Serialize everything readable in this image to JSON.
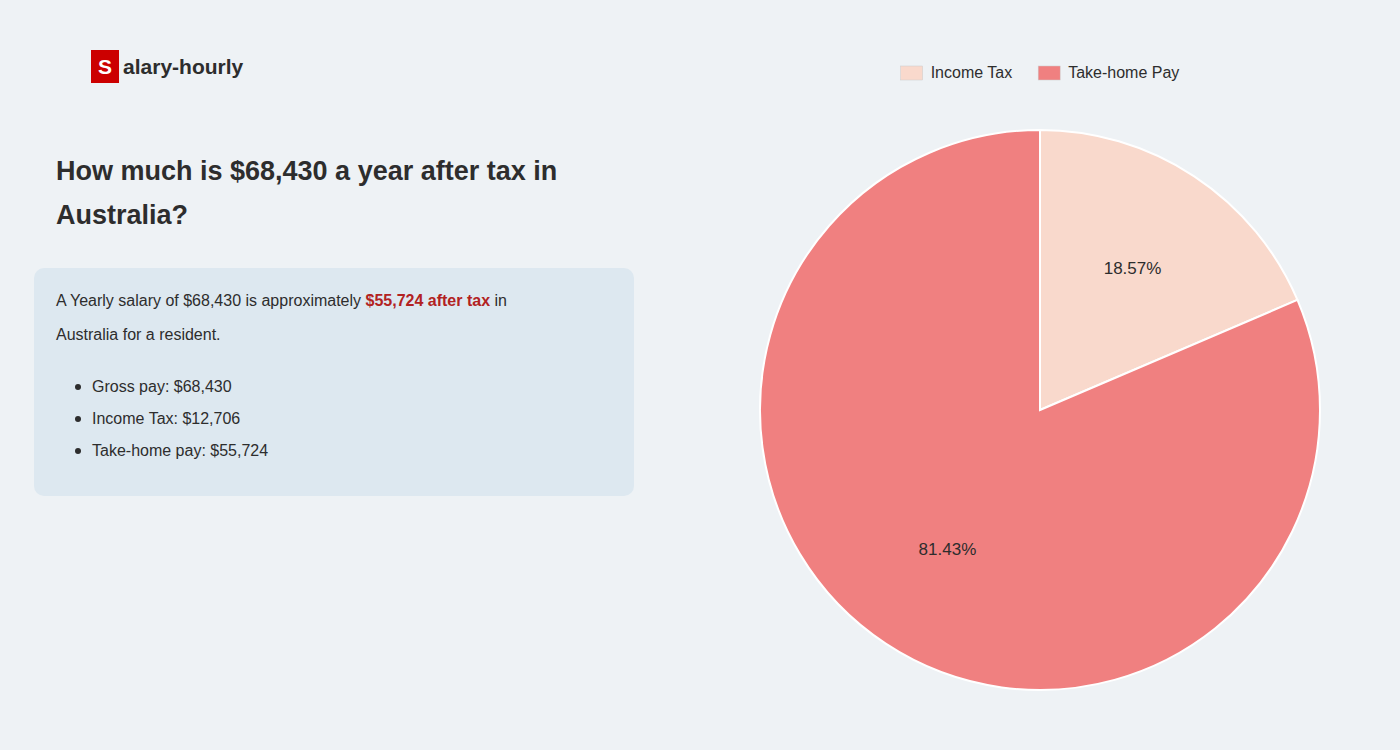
{
  "chart_data": {
    "type": "pie",
    "title": [
      "How much is $68,430 a year after tax in",
      "Australia?"
    ],
    "annotations": [
      {
        "text": "S",
        "color": "#cc0000"
      },
      {
        "text": "alary-hourly"
      },
      {
        "text": "A Yearly salary of $68,430 is approximately "
      },
      {
        "text": "$55,724 after tax",
        "color": "#b22222"
      },
      {
        "text": " in"
      },
      {
        "text": "Australia for a resident."
      },
      {
        "text": "Gross pay: $68,430"
      },
      {
        "text": "Income Tax: $12,706"
      },
      {
        "text": "Take-home pay: $55,724"
      }
    ],
    "categories": [
      "Income Tax",
      "Take-home Pay"
    ],
    "values": [
      18.57,
      81.43
    ],
    "value_labels": [
      "18.57%",
      "81.43%"
    ],
    "colors": [
      "#f9d9cc",
      "#f08080"
    ],
    "data_labels": true,
    "legend": "top"
  }
}
